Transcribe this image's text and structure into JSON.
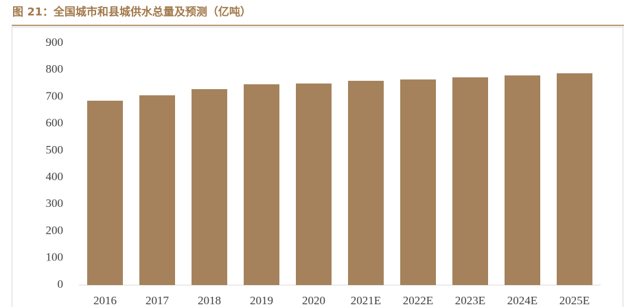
{
  "chart_data": {
    "type": "bar",
    "title": "图 21：全国城市和县城供水总量及预测（亿吨）",
    "categories": [
      "2016",
      "2017",
      "2018",
      "2019",
      "2020",
      "2021E",
      "2022E",
      "2023E",
      "2024E",
      "2025E"
    ],
    "values": [
      686,
      706,
      729,
      747,
      750,
      760,
      765,
      773,
      780,
      788
    ],
    "color": "#a5825c",
    "ylim": [
      0,
      900
    ],
    "yticks": [
      0,
      100,
      200,
      300,
      400,
      500,
      600,
      700,
      800,
      900
    ],
    "grid": false
  }
}
